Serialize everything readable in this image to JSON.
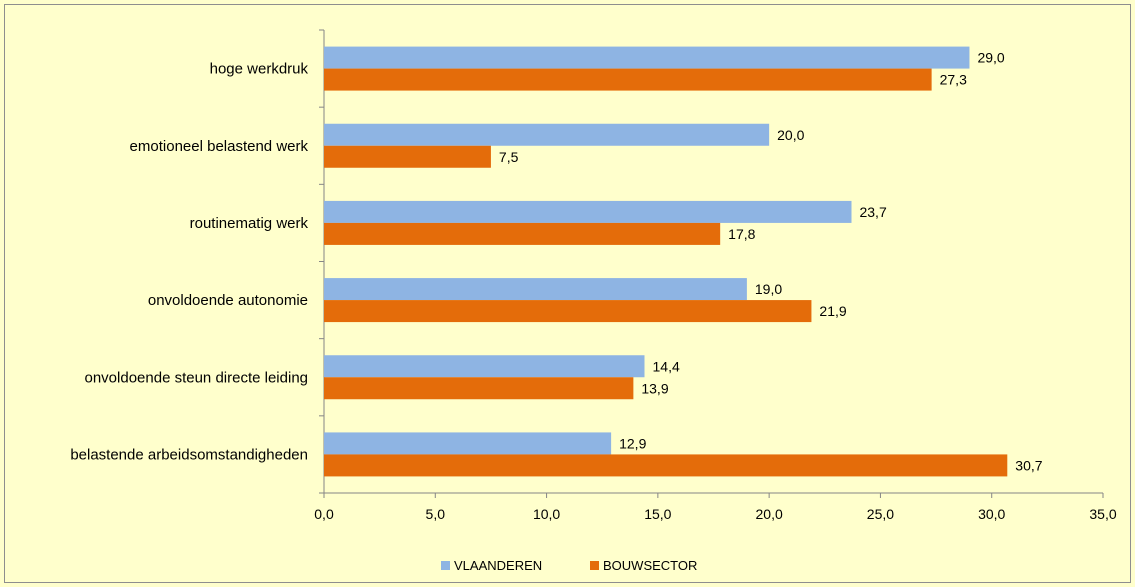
{
  "chart_data": {
    "type": "bar",
    "orientation": "horizontal",
    "categories": [
      "hoge werkdruk",
      "emotioneel belastend werk",
      "routinematig werk",
      "onvoldoende autonomie",
      "onvoldoende steun directe leiding",
      "belastende arbeidsomstandigheden"
    ],
    "series": [
      {
        "name": "VLAANDEREN",
        "color": "#8eb4e3",
        "values": [
          29.0,
          20.0,
          23.7,
          19.0,
          14.4,
          12.9
        ]
      },
      {
        "name": "BOUWSECTOR",
        "color": "#e46c0a",
        "values": [
          27.3,
          7.5,
          17.8,
          21.9,
          13.9,
          30.7
        ]
      }
    ],
    "data_labels": [
      [
        "29,0",
        "20,0",
        "23,7",
        "19,0",
        "14,4",
        "12,9"
      ],
      [
        "27,3",
        "7,5",
        "17,8",
        "21,9",
        "13,9",
        "30,7"
      ]
    ],
    "x_ticks": [
      "0,0",
      "5,0",
      "10,0",
      "15,0",
      "20,0",
      "25,0",
      "30,0",
      "35,0"
    ],
    "xlim": [
      0,
      35
    ],
    "grid": false,
    "legend_position": "bottom",
    "background_color": "#ffffcc"
  }
}
